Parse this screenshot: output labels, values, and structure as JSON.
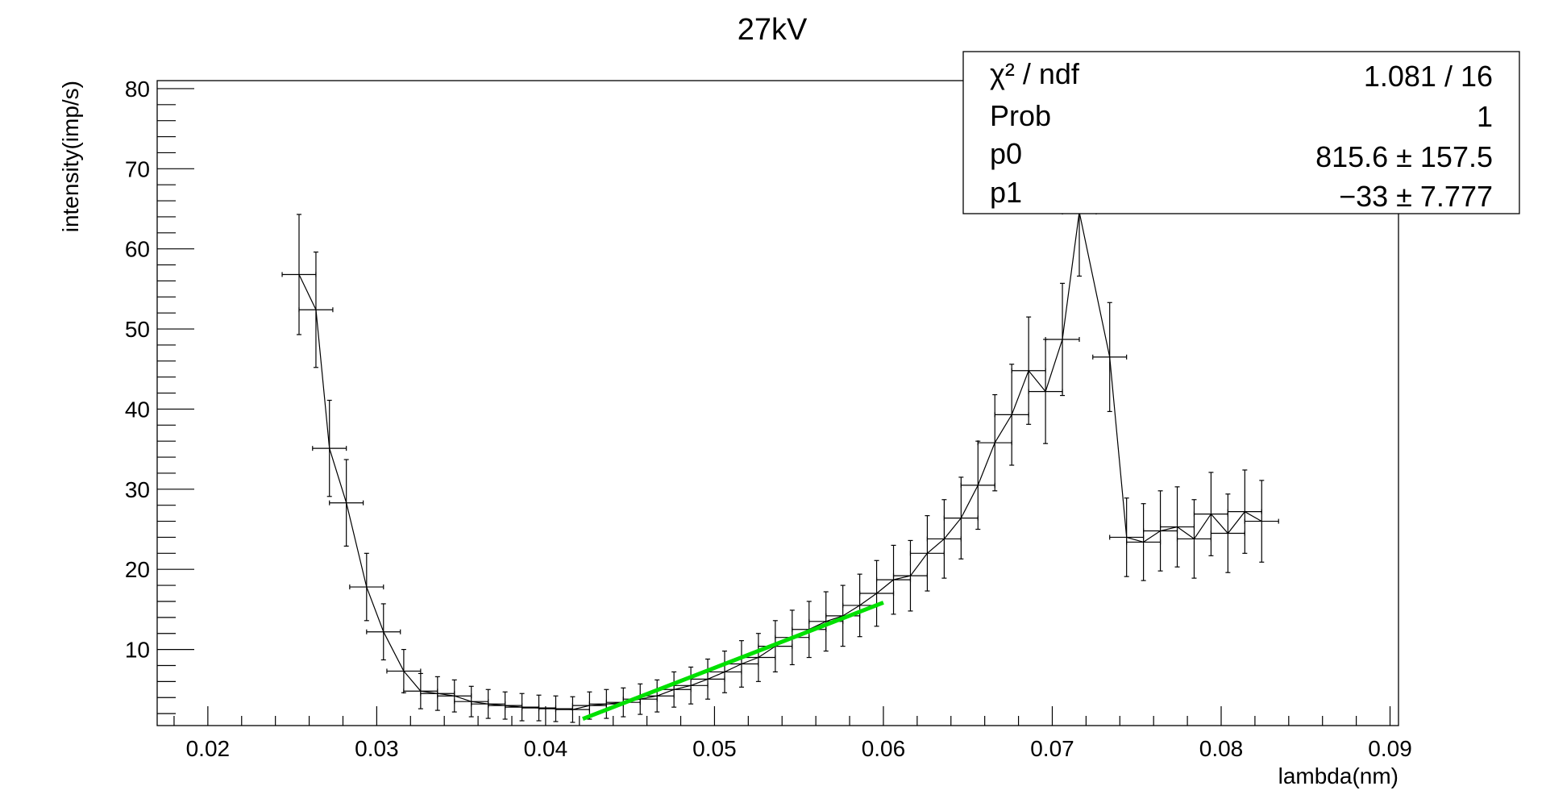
{
  "chart_data": {
    "type": "scatter",
    "title": "27kV",
    "xlabel": "lambda(nm)",
    "ylabel": "intensity(imp/s)",
    "xlim": [
      0.017,
      0.0905
    ],
    "ylim": [
      0.5,
      81
    ],
    "x_ticks": [
      "0.02",
      "0.03",
      "0.04",
      "0.05",
      "0.06",
      "0.07",
      "0.08",
      "0.09"
    ],
    "y_ticks": [
      "10",
      "20",
      "30",
      "40",
      "50",
      "60",
      "70",
      "80"
    ],
    "grid": false,
    "series": [
      {
        "style": "errorbars-connected",
        "color": "#000000",
        "x": [
          0.0254,
          0.0264,
          0.0272,
          0.0282,
          0.0294,
          0.0304,
          0.0316,
          0.0326,
          0.0336,
          0.0346,
          0.0356,
          0.0366,
          0.0376,
          0.0386,
          0.0396,
          0.0406,
          0.0416,
          0.0426,
          0.0436,
          0.0446,
          0.0456,
          0.0466,
          0.0476,
          0.0486,
          0.0496,
          0.0506,
          0.0516,
          0.0526,
          0.0536,
          0.0546,
          0.0556,
          0.0566,
          0.0576,
          0.0586,
          0.0596,
          0.0606,
          0.0616,
          0.0626,
          0.0636,
          0.0646,
          0.0656,
          0.0666,
          0.0676,
          0.0686,
          0.0696,
          0.0706,
          0.0716,
          0.0734,
          0.0744,
          0.0754,
          0.0764,
          0.0774,
          0.0784,
          0.0794,
          0.0804,
          0.0814,
          0.0824
        ],
        "y": [
          56.8,
          52.4,
          35.1,
          28.3,
          17.8,
          12.2,
          7.3,
          4.8,
          4.5,
          4.2,
          3.5,
          3.2,
          3.0,
          2.8,
          2.7,
          2.6,
          2.5,
          3.0,
          3.2,
          3.4,
          3.8,
          4.2,
          5.0,
          5.5,
          6.3,
          7.2,
          8.2,
          9.0,
          10.4,
          11.5,
          12.5,
          13.5,
          14.2,
          15.5,
          17.0,
          18.7,
          19.2,
          22.0,
          23.8,
          26.4,
          30.5,
          35.8,
          39.3,
          44.8,
          42.2,
          48.7,
          64.6,
          46.5,
          24.0,
          23.4,
          24.8,
          25.3,
          23.8,
          26.9,
          24.5,
          27.2,
          26.0
        ],
        "xerr": 0.001,
        "yerr": [
          7.5,
          7.2,
          6.0,
          5.4,
          4.2,
          3.5,
          2.7,
          2.2,
          2.1,
          2.0,
          1.9,
          1.8,
          1.7,
          1.7,
          1.6,
          1.6,
          1.6,
          1.7,
          1.8,
          1.8,
          1.9,
          2.0,
          2.2,
          2.3,
          2.5,
          2.6,
          2.9,
          3.0,
          3.2,
          3.4,
          3.5,
          3.7,
          3.8,
          3.9,
          4.1,
          4.3,
          4.4,
          4.7,
          4.9,
          5.1,
          5.5,
          6.0,
          6.3,
          6.7,
          6.5,
          7.0,
          8.0,
          6.8,
          4.9,
          4.8,
          5.0,
          5.0,
          4.9,
          5.2,
          4.9,
          5.2,
          5.1
        ]
      },
      {
        "style": "fit-line",
        "color": "#00e000",
        "x": [
          0.0422,
          0.06
        ],
        "y": [
          1.34,
          15.85
        ]
      }
    ],
    "stats_box": {
      "rows": [
        {
          "label": "χ² / ndf",
          "value": "1.081 / 16"
        },
        {
          "label": "Prob",
          "value": "1"
        },
        {
          "label": "p0",
          "value": "815.6 ± 157.5"
        },
        {
          "label": "p1",
          "value": "−33 ± 7.777"
        }
      ]
    }
  }
}
